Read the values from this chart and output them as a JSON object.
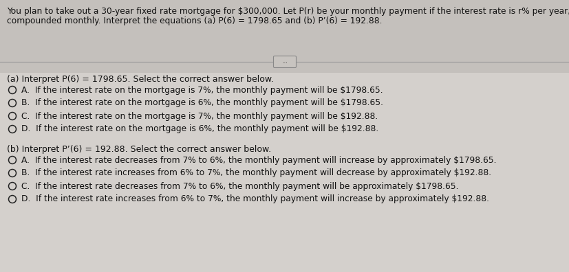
{
  "bg_top": "#c8c4c0",
  "bg_bottom": "#d8d4d0",
  "header_text_line1": "You plan to take out a 30-year fixed rate mortgage for $300,000. Let P(r) be your monthly payment if the interest rate is r% per year,",
  "header_text_line2": "compounded monthly. Interpret the equations (a) P(6) = 1798.65 and (b) P’(6) = 192.88.",
  "section_a_label": "(a) Interpret P(6) = 1798.65. Select the correct answer below.",
  "section_a_options": [
    "A.  If the interest rate on the mortgage is 7%, the monthly payment will be $1798.65.",
    "B.  If the interest rate on the mortgage is 6%, the monthly payment will be $1798.65.",
    "C.  If the interest rate on the mortgage is 7%, the monthly payment will be $192.88.",
    "D.  If the interest rate on the mortgage is 6%, the monthly payment will be $192.88."
  ],
  "section_b_label": "(b) Interpret P’(6) = 192.88. Select the correct answer below.",
  "section_b_options": [
    "A.  If the interest rate decreases from 7% to 6%, the monthly payment will increase by approximately $1798.65.",
    "B.  If the interest rate increases from 6% to 7%, the monthly payment will decrease by approximately $192.88.",
    "C.  If the interest rate decreases from 7% to 6%, the monthly payment will be approximately $1798.65.",
    "D.  If the interest rate increases from 6% to 7%, the monthly payment will increase by approximately $192.88."
  ],
  "font_size_header": 8.8,
  "font_size_label": 9.0,
  "font_size_option": 8.8,
  "text_color": "#111111",
  "circle_color": "#222222",
  "line_color": "#999999",
  "btn_color": "#bbbbbb"
}
